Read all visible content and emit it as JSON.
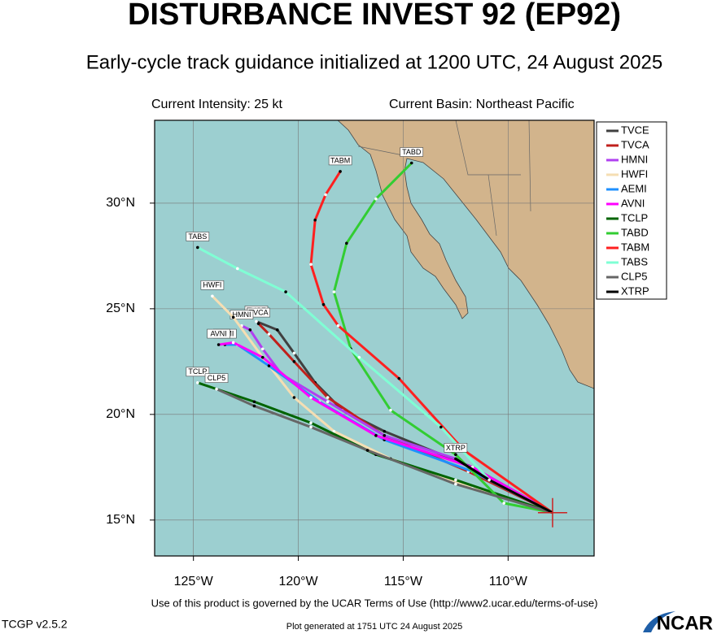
{
  "chart_data": {
    "type": "track",
    "title": "DISTURBANCE INVEST 92 (EP92)",
    "subtitle": "Early-cycle track guidance initialized at 1200 UTC, 24 August 2025",
    "intensity": "Current Intensity: 25 kt",
    "basin": "Current Basin: Northeast Pacific",
    "xlim": [
      -126.85,
      -105.9
    ],
    "ylim": [
      13.3,
      33.92
    ],
    "xticks": [
      {
        "value": -125,
        "label": "125°W"
      },
      {
        "value": -120,
        "label": "120°W"
      },
      {
        "value": -115,
        "label": "115°W"
      },
      {
        "value": -110,
        "label": "110°W"
      }
    ],
    "yticks": [
      {
        "value": 15,
        "label": "15°N"
      },
      {
        "value": 20,
        "label": "20°N"
      },
      {
        "value": 25,
        "label": "25°N"
      },
      {
        "value": 30,
        "label": "30°N"
      }
    ],
    "grid": true,
    "current_position": {
      "x": -107.88,
      "y": 15.35,
      "color": "#cc2222"
    },
    "series": [
      {
        "name": "TVCE",
        "color": "#404040",
        "x": [
          -107.88,
          -111.7,
          -115.9,
          -117.9,
          -119.2,
          -120.2,
          -121.0,
          -122.0
        ],
        "values": [
          15.35,
          17.5,
          19.2,
          20.2,
          21.5,
          22.9,
          24.0,
          24.4
        ]
      },
      {
        "name": "TVCA",
        "color": "#c0201c",
        "x": [
          -107.88,
          -111.9,
          -115.9,
          -118.6,
          -120.2,
          -121.4,
          -121.9
        ],
        "values": [
          15.35,
          17.3,
          19.0,
          20.8,
          22.5,
          23.8,
          24.3
        ]
      },
      {
        "name": "HMNI",
        "color": "#b040f0",
        "x": [
          -107.88,
          -112.5,
          -115.9,
          -118.6,
          -120.8,
          -121.7,
          -122.3,
          -122.7
        ],
        "values": [
          15.35,
          17.9,
          19.0,
          20.6,
          21.9,
          23.1,
          24.0,
          24.2
        ]
      },
      {
        "name": "HWFI",
        "color": "#f5deb3",
        "x": [
          -107.88,
          -111.7,
          -115.6,
          -118.3,
          -120.2,
          -121.7,
          -123.1,
          -124.1
        ],
        "values": [
          15.35,
          16.5,
          17.9,
          19.2,
          20.8,
          22.7,
          24.6,
          25.6
        ]
      },
      {
        "name": "AEMI",
        "color": "#1e90ff",
        "x": [
          -107.88,
          -111.7,
          -115.9,
          -119.0,
          -121.4,
          -122.9,
          -123.5
        ],
        "values": [
          15.35,
          17.3,
          18.8,
          20.6,
          22.3,
          23.3,
          23.3
        ]
      },
      {
        "name": "AVNI",
        "color": "#ff00ff",
        "x": [
          -107.88,
          -111.7,
          -116.3,
          -119.4,
          -121.7,
          -123.1,
          -123.8
        ],
        "values": [
          15.35,
          17.5,
          19.0,
          20.8,
          22.7,
          23.4,
          23.3
        ]
      },
      {
        "name": "TCLP",
        "color": "#006400",
        "x": [
          -107.88,
          -112.5,
          -116.3,
          -119.4,
          -122.1,
          -124.8
        ],
        "values": [
          15.35,
          16.9,
          18.1,
          19.6,
          20.6,
          21.5
        ]
      },
      {
        "name": "TABD",
        "color": "#32cd32",
        "x": [
          -107.88,
          -110.2,
          -112.5,
          -115.6,
          -117.5,
          -118.3,
          -117.7,
          -116.3,
          -114.6
        ],
        "values": [
          15.35,
          15.8,
          18.1,
          20.2,
          23.1,
          25.8,
          28.1,
          30.2,
          31.9
        ]
      },
      {
        "name": "TABM",
        "color": "#ff2020",
        "x": [
          -107.88,
          -112.1,
          -115.2,
          -118.1,
          -118.8,
          -119.4,
          -119.2,
          -118.7,
          -118.0
        ],
        "values": [
          15.35,
          18.3,
          21.7,
          24.2,
          25.2,
          27.1,
          29.2,
          30.4,
          31.5
        ]
      },
      {
        "name": "TABS",
        "color": "#7fffd4",
        "x": [
          -107.88,
          -110.9,
          -113.2,
          -117.1,
          -120.6,
          -122.9,
          -124.8
        ],
        "values": [
          15.35,
          16.9,
          19.4,
          22.7,
          25.8,
          26.9,
          27.9
        ]
      },
      {
        "name": "CLP5",
        "color": "#666666",
        "x": [
          -107.88,
          -112.5,
          -116.7,
          -119.4,
          -122.1,
          -123.9
        ],
        "values": [
          15.35,
          16.7,
          18.3,
          19.4,
          20.4,
          21.2
        ]
      },
      {
        "name": "XTRP",
        "color": "#000000",
        "x": [
          -107.88,
          -110.9,
          -112.5
        ],
        "values": [
          15.35,
          16.9,
          17.9
        ]
      }
    ]
  },
  "footer": {
    "terms": "Use of this product is governed by the UCAR Terms of Use (http://www2.ucar.edu/terms-of-use)",
    "version": "TCGP v2.5.2",
    "generated": "Plot generated at 1751 UTC  24 August 2025",
    "logo": "NCAR"
  }
}
